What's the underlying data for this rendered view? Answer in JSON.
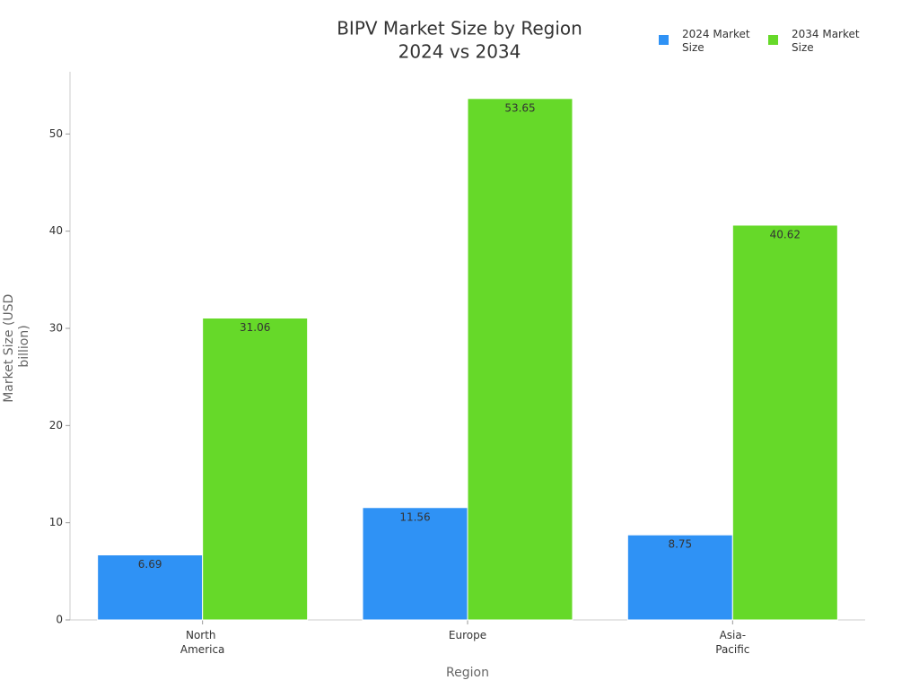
{
  "chart_data": {
    "type": "bar",
    "title": "BIPV Market Size by Region",
    "subtitle": "2024 vs 2034",
    "x_label": "Region",
    "y_label": "Market Size (USD billion)",
    "categories": [
      "North America",
      "Europe",
      "Asia-Pacific"
    ],
    "series": [
      {
        "name": "2024 Market Size",
        "color": "#2f92f5",
        "values": [
          6.69,
          11.56,
          8.75
        ]
      },
      {
        "name": "2034 Market Size",
        "color": "#66d929",
        "values": [
          31.06,
          53.65,
          40.62
        ]
      }
    ],
    "ylim": [
      0,
      56.4
    ],
    "yticks": [
      0,
      10,
      20,
      30,
      40,
      50
    ],
    "legend": "top-right"
  }
}
